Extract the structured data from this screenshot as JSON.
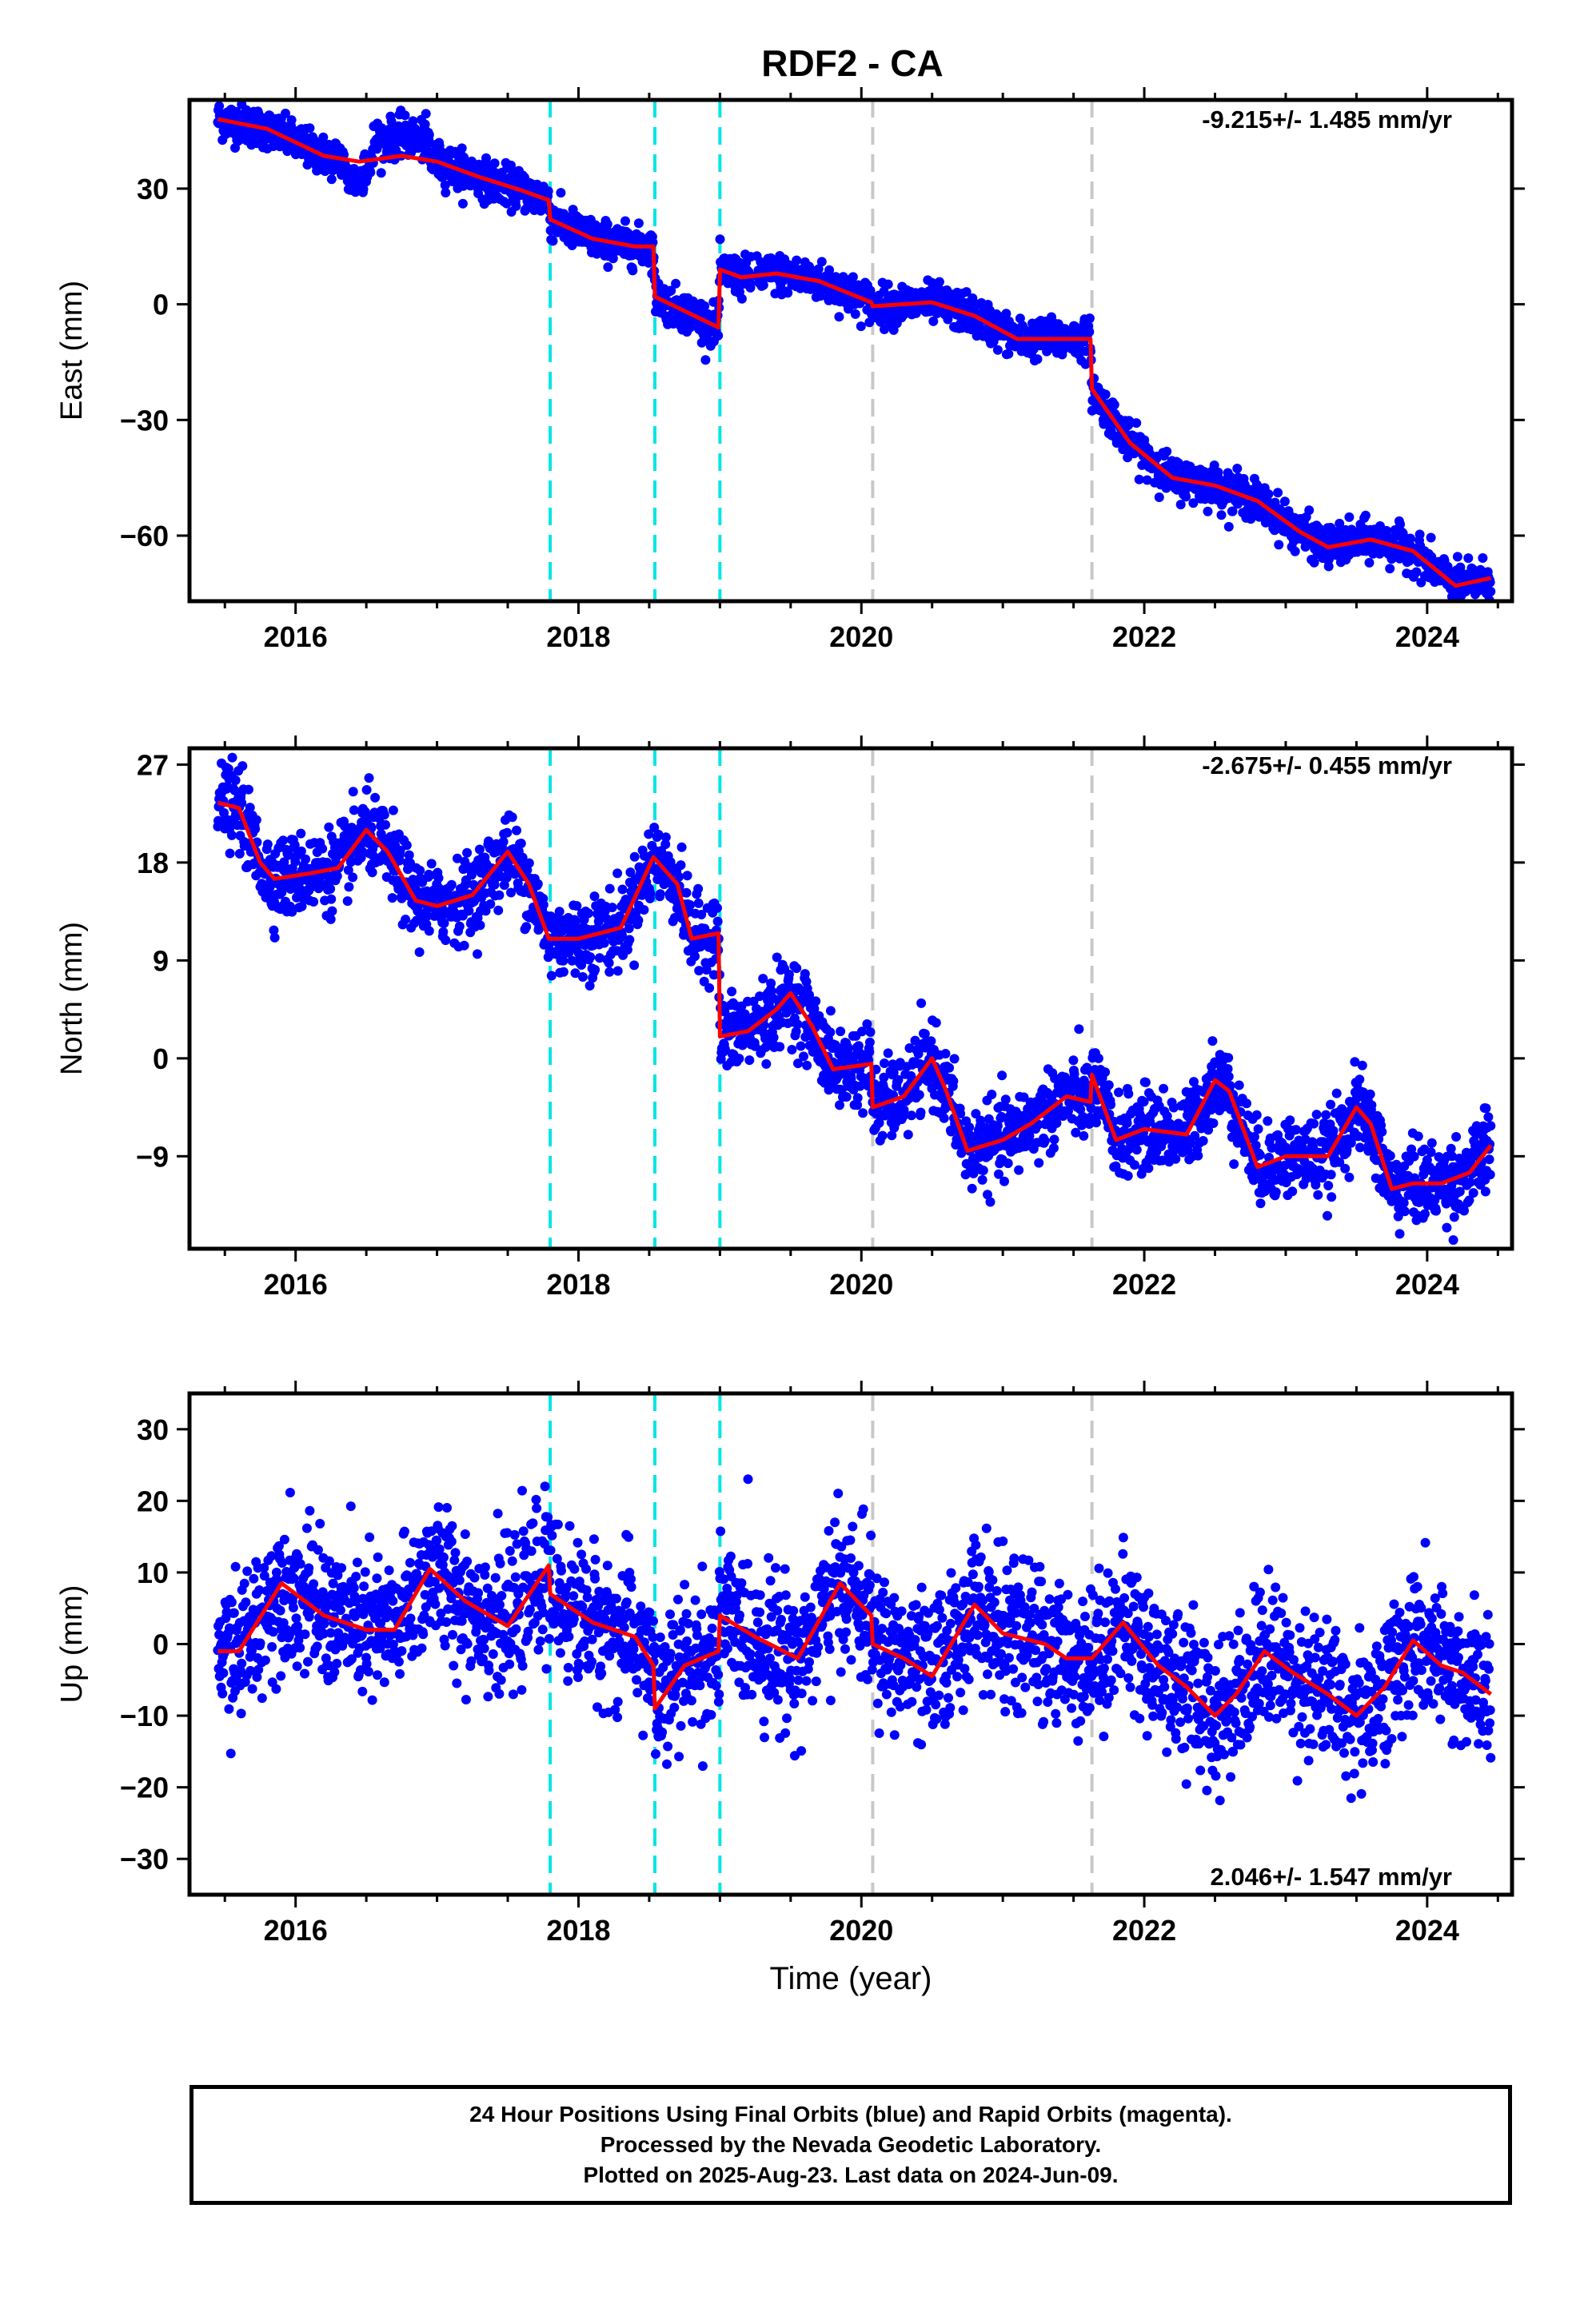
{
  "title": "RDF2 - CA",
  "xlabel": "Time (year)",
  "footer_lines": [
    "24 Hour Positions Using Final Orbits (blue) and Rapid Orbits (magenta).",
    "Processed by the Nevada Geodetic Laboratory.",
    "Plotted on 2025-Aug-23. Last data on 2024-Jun-09."
  ],
  "colors": {
    "points": "#0000ff",
    "fit": "#ff0000",
    "steps_equipment": "#00e5e5",
    "steps_other": "#c8c8c8"
  },
  "chart_data": [
    {
      "type": "scatter",
      "ylabel": "East (mm)",
      "rate_text": "-9.215+/- 1.485 mm/yr",
      "xlim": [
        2015.25,
        2024.6
      ],
      "ylim": [
        -77,
        53
      ],
      "xticks": [
        2016,
        2018,
        2020,
        2022,
        2024
      ],
      "yticks": [
        30,
        0,
        -30,
        -60
      ],
      "ytick_labels": [
        "30",
        "0",
        "−30",
        "−60"
      ],
      "steps_cyan": [
        2017.8,
        2018.54,
        2019.0
      ],
      "steps_gray": [
        2020.08,
        2021.63
      ],
      "noise": 2.5,
      "scatter_offsets": [
        [
          2016.35,
          2016.48,
          -5
        ],
        [
          2016.55,
          2016.95,
          5
        ]
      ],
      "fit": [
        [
          2015.45,
          48
        ],
        [
          2015.8,
          45.5
        ],
        [
          2016.2,
          38.5
        ],
        [
          2016.45,
          37
        ],
        [
          2016.75,
          38.5
        ],
        [
          2017.0,
          37
        ],
        [
          2017.3,
          33
        ],
        [
          2017.6,
          29.5
        ],
        [
          2017.79,
          27
        ],
        [
          2017.8,
          22
        ],
        [
          2018.1,
          17
        ],
        [
          2018.4,
          15
        ],
        [
          2018.53,
          15
        ],
        [
          2018.54,
          2
        ],
        [
          2018.99,
          -6
        ],
        [
          2019.0,
          9
        ],
        [
          2019.15,
          7
        ],
        [
          2019.4,
          8
        ],
        [
          2019.7,
          6
        ],
        [
          2020.07,
          0.5
        ],
        [
          2020.08,
          -0.5
        ],
        [
          2020.5,
          0.5
        ],
        [
          2020.8,
          -3
        ],
        [
          2021.1,
          -9
        ],
        [
          2021.4,
          -9
        ],
        [
          2021.62,
          -9
        ],
        [
          2021.63,
          -22
        ],
        [
          2021.9,
          -36
        ],
        [
          2022.2,
          -45
        ],
        [
          2022.5,
          -47
        ],
        [
          2022.8,
          -51
        ],
        [
          2023.1,
          -59
        ],
        [
          2023.3,
          -63
        ],
        [
          2023.6,
          -61
        ],
        [
          2023.9,
          -64
        ],
        [
          2024.2,
          -73
        ],
        [
          2024.45,
          -71
        ]
      ]
    },
    {
      "type": "scatter",
      "ylabel": "North (mm)",
      "rate_text": "-2.675+/- 0.455 mm/yr",
      "xlim": [
        2015.25,
        2024.6
      ],
      "ylim": [
        -17.5,
        28.5
      ],
      "xticks": [
        2016,
        2018,
        2020,
        2022,
        2024
      ],
      "yticks": [
        27,
        18,
        9,
        0,
        -9
      ],
      "ytick_labels": [
        "27",
        "18",
        "9",
        "0",
        "−9"
      ],
      "steps_cyan": [
        2017.8,
        2018.54,
        2019.0
      ],
      "steps_gray": [
        2020.08,
        2021.63
      ],
      "noise": 1.8,
      "scatter_offsets": [],
      "fit": [
        [
          2015.45,
          23.5
        ],
        [
          2015.6,
          23
        ],
        [
          2015.75,
          18
        ],
        [
          2015.85,
          16.5
        ],
        [
          2016.1,
          17
        ],
        [
          2016.3,
          17.5
        ],
        [
          2016.5,
          21
        ],
        [
          2016.65,
          19
        ],
        [
          2016.85,
          14.5
        ],
        [
          2017.0,
          14
        ],
        [
          2017.25,
          15
        ],
        [
          2017.5,
          19
        ],
        [
          2017.65,
          16
        ],
        [
          2017.79,
          11
        ],
        [
          2018.0,
          11
        ],
        [
          2018.3,
          12
        ],
        [
          2018.53,
          18.5
        ],
        [
          2018.7,
          16
        ],
        [
          2018.8,
          11
        ],
        [
          2018.99,
          11.5
        ],
        [
          2019.0,
          2
        ],
        [
          2019.2,
          2.5
        ],
        [
          2019.4,
          4.5
        ],
        [
          2019.5,
          6
        ],
        [
          2019.65,
          3
        ],
        [
          2019.8,
          -1
        ],
        [
          2020.07,
          -0.5
        ],
        [
          2020.08,
          -4.5
        ],
        [
          2020.3,
          -3.5
        ],
        [
          2020.5,
          0
        ],
        [
          2020.6,
          -3
        ],
        [
          2020.75,
          -8.5
        ],
        [
          2021.0,
          -7.5
        ],
        [
          2021.2,
          -6
        ],
        [
          2021.45,
          -3.5
        ],
        [
          2021.62,
          -4
        ],
        [
          2021.63,
          -1.5
        ],
        [
          2021.8,
          -7.5
        ],
        [
          2022.0,
          -6.5
        ],
        [
          2022.3,
          -7
        ],
        [
          2022.5,
          -2
        ],
        [
          2022.6,
          -3
        ],
        [
          2022.8,
          -10
        ],
        [
          2023.0,
          -9
        ],
        [
          2023.3,
          -9
        ],
        [
          2023.5,
          -4.5
        ],
        [
          2023.6,
          -6
        ],
        [
          2023.75,
          -12
        ],
        [
          2023.9,
          -11.5
        ],
        [
          2024.1,
          -11.5
        ],
        [
          2024.3,
          -10.5
        ],
        [
          2024.45,
          -8
        ]
      ]
    },
    {
      "type": "scatter",
      "ylabel": "Up (mm)",
      "rate_text": "2.046+/- 1.547 mm/yr",
      "xlim": [
        2015.25,
        2024.6
      ],
      "ylim": [
        -35,
        35
      ],
      "xticks": [
        2016,
        2018,
        2020,
        2022,
        2024
      ],
      "yticks": [
        30,
        20,
        10,
        0,
        -10,
        -20,
        -30
      ],
      "ytick_labels": [
        "30",
        "20",
        "10",
        "0",
        "−10",
        "−20",
        "−30"
      ],
      "steps_cyan": [
        2017.8,
        2018.54,
        2019.0
      ],
      "steps_gray": [
        2020.08,
        2021.63
      ],
      "noise": 5,
      "scatter_offsets": [],
      "fit": [
        [
          2015.45,
          -1
        ],
        [
          2015.6,
          -1
        ],
        [
          2015.9,
          8.5
        ],
        [
          2016.2,
          4
        ],
        [
          2016.5,
          2
        ],
        [
          2016.7,
          2
        ],
        [
          2016.95,
          10.5
        ],
        [
          2017.2,
          6
        ],
        [
          2017.5,
          2.5
        ],
        [
          2017.79,
          11
        ],
        [
          2017.8,
          7
        ],
        [
          2018.1,
          3
        ],
        [
          2018.4,
          1
        ],
        [
          2018.53,
          -3
        ],
        [
          2018.54,
          -9
        ],
        [
          2018.75,
          -3
        ],
        [
          2018.99,
          -1
        ],
        [
          2019.0,
          4
        ],
        [
          2019.25,
          1
        ],
        [
          2019.55,
          -2
        ],
        [
          2019.85,
          8.5
        ],
        [
          2020.07,
          4
        ],
        [
          2020.08,
          0
        ],
        [
          2020.3,
          -2
        ],
        [
          2020.5,
          -4.5
        ],
        [
          2020.8,
          5.5
        ],
        [
          2021.0,
          1.5
        ],
        [
          2021.3,
          0
        ],
        [
          2021.45,
          -2
        ],
        [
          2021.62,
          -2
        ],
        [
          2021.63,
          -2
        ],
        [
          2021.85,
          3
        ],
        [
          2022.1,
          -3
        ],
        [
          2022.3,
          -6
        ],
        [
          2022.5,
          -10
        ],
        [
          2022.65,
          -7
        ],
        [
          2022.85,
          -1
        ],
        [
          2023.05,
          -4
        ],
        [
          2023.3,
          -7
        ],
        [
          2023.5,
          -10
        ],
        [
          2023.7,
          -6
        ],
        [
          2023.9,
          0.5
        ],
        [
          2024.1,
          -3
        ],
        [
          2024.25,
          -4
        ],
        [
          2024.45,
          -7
        ]
      ]
    }
  ]
}
